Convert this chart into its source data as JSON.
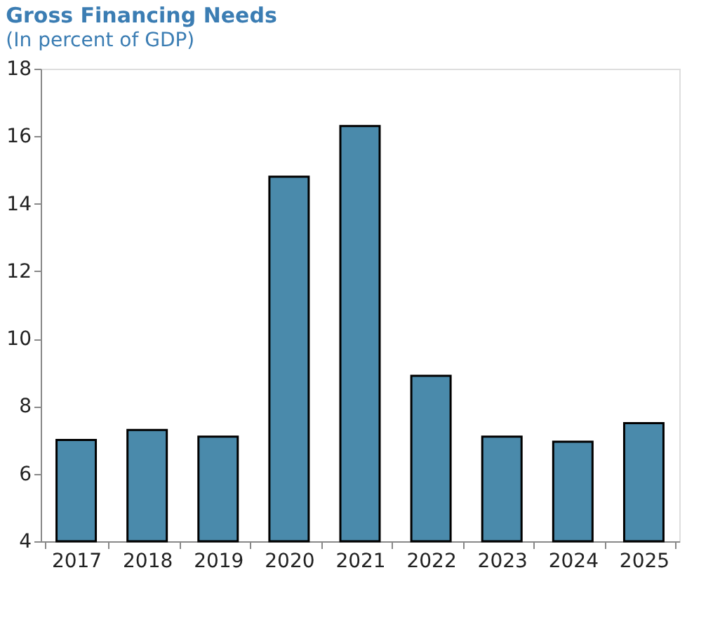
{
  "chart_data": {
    "type": "bar",
    "title": "Gross Financing Needs",
    "subtitle": "(In percent of GDP)",
    "categories": [
      "2017",
      "2018",
      "2019",
      "2020",
      "2021",
      "2022",
      "2023",
      "2024",
      "2025"
    ],
    "values": [
      7.0,
      7.3,
      7.1,
      14.8,
      16.3,
      8.9,
      7.1,
      6.95,
      7.5
    ],
    "color": "#4a8aab",
    "ylim": [
      4,
      18
    ],
    "yticks": [
      4,
      6,
      8,
      10,
      12,
      14,
      16,
      18
    ],
    "grid": false
  }
}
